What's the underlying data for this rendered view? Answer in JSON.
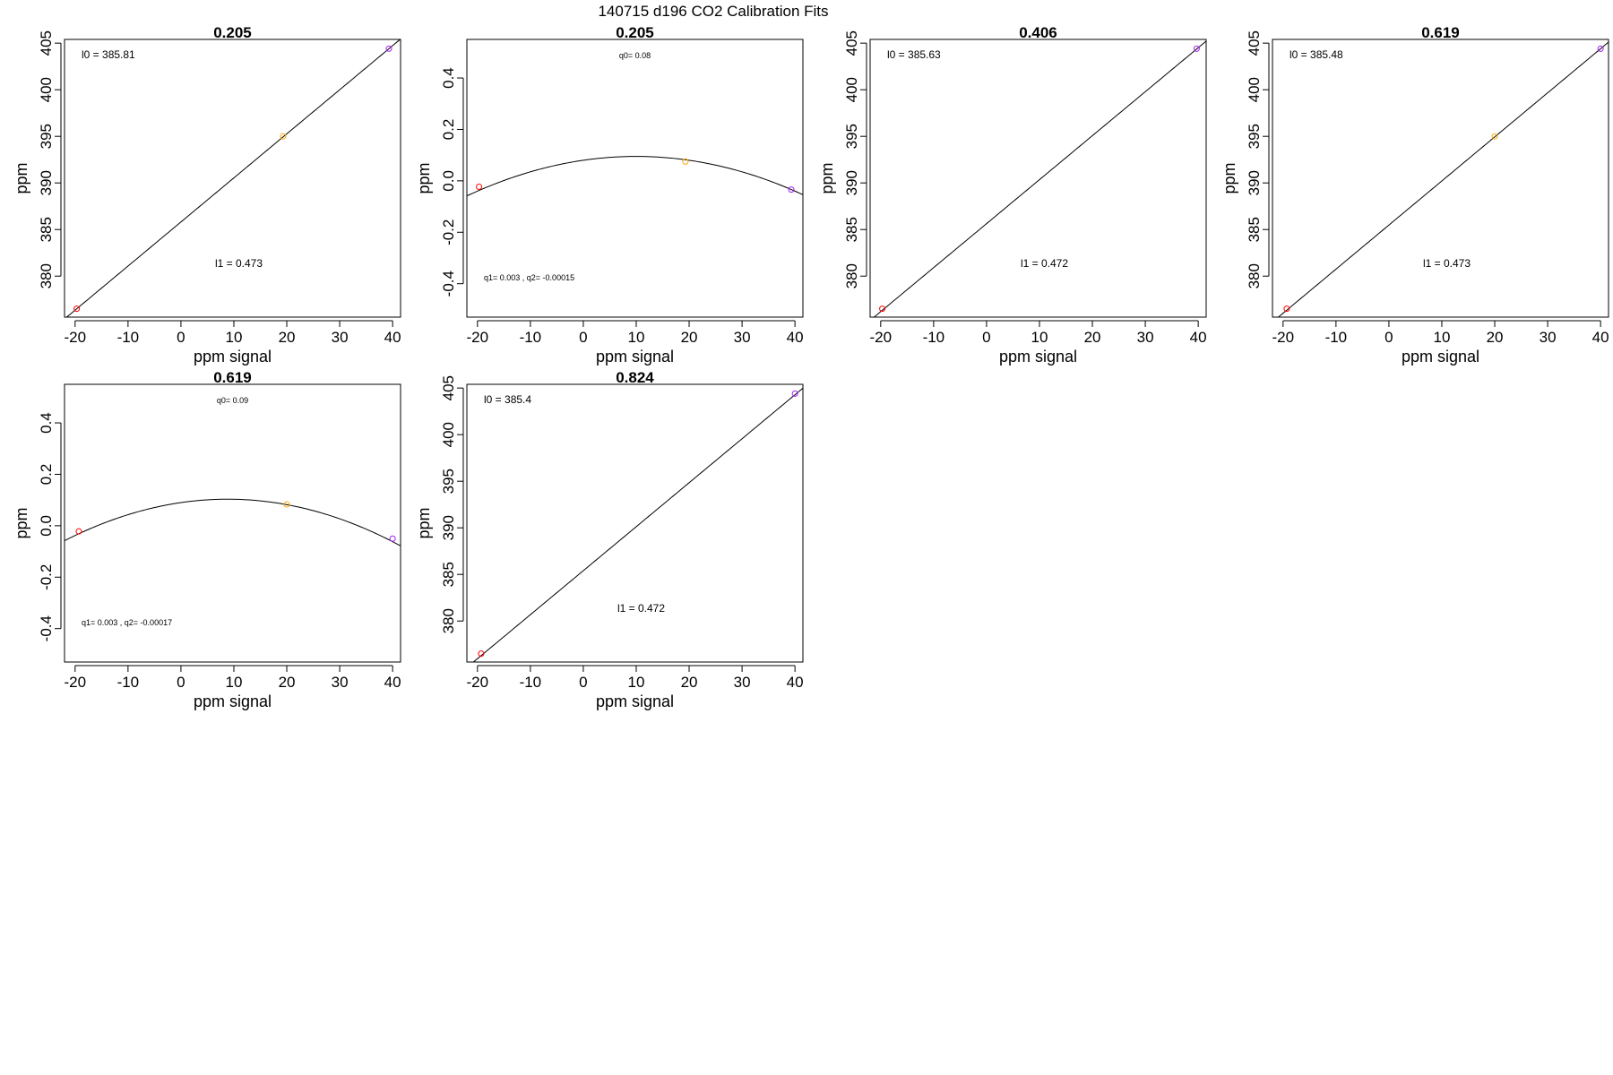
{
  "suptitle": "140715   d196   CO2 Calibration Fits",
  "colors": {
    "line": "#000000",
    "frame": "#000000",
    "point_low": "#ff0000",
    "point_mid": "#ffa500",
    "point_high": "#a020f0"
  },
  "chart_data": [
    {
      "type": "scatter",
      "title": "0.205",
      "xlabel": "ppm signal",
      "ylabel": "ppm",
      "xlim": [
        -22,
        41.5
      ],
      "ylim": [
        375.6,
        405.4
      ],
      "xticks": [
        -20,
        -10,
        0,
        10,
        20,
        30,
        40
      ],
      "xtick_labels": [
        "-20",
        "-10",
        "0",
        "10",
        "20",
        "30",
        "40"
      ],
      "yticks": [
        380,
        385,
        390,
        395,
        400,
        405
      ],
      "ytick_labels": [
        "380",
        "385",
        "390",
        "395",
        "400",
        "405"
      ],
      "fit": {
        "kind": "linear",
        "intercept": 385.81,
        "slope": 0.473
      },
      "points": [
        {
          "x": -19.7,
          "y": 376.5,
          "color": "point_low"
        },
        {
          "x": 19.3,
          "y": 395.0,
          "color": "point_mid"
        },
        {
          "x": 39.3,
          "y": 404.4,
          "color": "point_high"
        }
      ],
      "annotations": [
        {
          "text": "l0 =  385.81",
          "pos": "top-left",
          "size": "normal"
        },
        {
          "text": "l1 =  0.473",
          "pos": "bottom-center",
          "size": "normal"
        }
      ]
    },
    {
      "type": "scatter",
      "title": "0.205",
      "xlabel": "ppm signal",
      "ylabel": "ppm",
      "xlim": [
        -22,
        41.5
      ],
      "ylim": [
        -0.53,
        0.55
      ],
      "xticks": [
        -20,
        -10,
        0,
        10,
        20,
        30,
        40
      ],
      "xtick_labels": [
        "-20",
        "-10",
        "0",
        "10",
        "20",
        "30",
        "40"
      ],
      "yticks": [
        -0.4,
        -0.2,
        0.0,
        0.2,
        0.4
      ],
      "ytick_labels": [
        "-0.4",
        "-0.2",
        "0.0",
        "0.2",
        "0.4"
      ],
      "fit": {
        "kind": "quadratic",
        "q0": 0.08,
        "q1": 0.003,
        "q2": -0.00015
      },
      "points": [
        {
          "x": -19.7,
          "y": -0.023,
          "color": "point_low"
        },
        {
          "x": 19.3,
          "y": 0.075,
          "color": "point_mid"
        },
        {
          "x": 39.3,
          "y": -0.034,
          "color": "point_high"
        }
      ],
      "annotations": [
        {
          "text": "q0= 0.08",
          "pos": "top-center",
          "size": "small"
        },
        {
          "text": "q1= 0.003 , q2= -0.00015",
          "pos": "bottom-left",
          "size": "small"
        }
      ]
    },
    {
      "type": "scatter",
      "title": "0.406",
      "xlabel": "ppm signal",
      "ylabel": "ppm",
      "xlim": [
        -22,
        41.5
      ],
      "ylim": [
        375.6,
        405.4
      ],
      "xticks": [
        -20,
        -10,
        0,
        10,
        20,
        30,
        40
      ],
      "xtick_labels": [
        "-20",
        "-10",
        "0",
        "10",
        "20",
        "30",
        "40"
      ],
      "yticks": [
        380,
        385,
        390,
        395,
        400,
        405
      ],
      "ytick_labels": [
        "380",
        "385",
        "390",
        "395",
        "400",
        "405"
      ],
      "fit": {
        "kind": "linear",
        "intercept": 385.63,
        "slope": 0.472
      },
      "points": [
        {
          "x": -19.7,
          "y": 376.5,
          "color": "point_low"
        },
        {
          "x": 39.7,
          "y": 404.4,
          "color": "point_high"
        }
      ],
      "annotations": [
        {
          "text": "l0 =  385.63",
          "pos": "top-left",
          "size": "normal"
        },
        {
          "text": "l1 =  0.472",
          "pos": "bottom-center",
          "size": "normal"
        }
      ]
    },
    {
      "type": "scatter",
      "title": "0.619",
      "xlabel": "ppm signal",
      "ylabel": "ppm",
      "xlim": [
        -22,
        41.5
      ],
      "ylim": [
        375.6,
        405.4
      ],
      "xticks": [
        -20,
        -10,
        0,
        10,
        20,
        30,
        40
      ],
      "xtick_labels": [
        "-20",
        "-10",
        "0",
        "10",
        "20",
        "30",
        "40"
      ],
      "yticks": [
        380,
        385,
        390,
        395,
        400,
        405
      ],
      "ytick_labels": [
        "380",
        "385",
        "390",
        "395",
        "400",
        "405"
      ],
      "fit": {
        "kind": "linear",
        "intercept": 385.48,
        "slope": 0.473
      },
      "points": [
        {
          "x": -19.3,
          "y": 376.5,
          "color": "point_low"
        },
        {
          "x": 20.0,
          "y": 395.0,
          "color": "point_mid"
        },
        {
          "x": 40.0,
          "y": 404.4,
          "color": "point_high"
        }
      ],
      "annotations": [
        {
          "text": "l0 =  385.48",
          "pos": "top-left",
          "size": "normal"
        },
        {
          "text": "l1 =  0.473",
          "pos": "bottom-center",
          "size": "normal"
        }
      ]
    },
    {
      "type": "scatter",
      "title": "0.619",
      "xlabel": "ppm signal",
      "ylabel": "ppm",
      "xlim": [
        -22,
        41.5
      ],
      "ylim": [
        -0.53,
        0.55
      ],
      "xticks": [
        -20,
        -10,
        0,
        10,
        20,
        30,
        40
      ],
      "xtick_labels": [
        "-20",
        "-10",
        "0",
        "10",
        "20",
        "30",
        "40"
      ],
      "yticks": [
        -0.4,
        -0.2,
        0.0,
        0.2,
        0.4
      ],
      "ytick_labels": [
        "-0.4",
        "-0.2",
        "0.0",
        "0.2",
        "0.4"
      ],
      "fit": {
        "kind": "quadratic",
        "q0": 0.09,
        "q1": 0.003,
        "q2": -0.00017
      },
      "points": [
        {
          "x": -19.3,
          "y": -0.022,
          "color": "point_low"
        },
        {
          "x": 20.0,
          "y": 0.083,
          "color": "point_mid"
        },
        {
          "x": 40.0,
          "y": -0.05,
          "color": "point_high"
        }
      ],
      "annotations": [
        {
          "text": "q0= 0.09",
          "pos": "top-center",
          "size": "small"
        },
        {
          "text": "q1= 0.003 , q2= -0.00017",
          "pos": "bottom-left",
          "size": "small"
        }
      ]
    },
    {
      "type": "scatter",
      "title": "0.824",
      "xlabel": "ppm signal",
      "ylabel": "ppm",
      "xlim": [
        -22,
        41.5
      ],
      "ylim": [
        375.6,
        405.4
      ],
      "xticks": [
        -20,
        -10,
        0,
        10,
        20,
        30,
        40
      ],
      "xtick_labels": [
        "-20",
        "-10",
        "0",
        "10",
        "20",
        "30",
        "40"
      ],
      "yticks": [
        380,
        385,
        390,
        395,
        400,
        405
      ],
      "ytick_labels": [
        "380",
        "385",
        "390",
        "395",
        "400",
        "405"
      ],
      "fit": {
        "kind": "linear",
        "intercept": 385.4,
        "slope": 0.472
      },
      "points": [
        {
          "x": -19.3,
          "y": 376.5,
          "color": "point_low"
        },
        {
          "x": 40.0,
          "y": 404.4,
          "color": "point_high"
        }
      ],
      "annotations": [
        {
          "text": "l0 =  385.4",
          "pos": "top-left",
          "size": "normal"
        },
        {
          "text": "l1 =  0.472",
          "pos": "bottom-center",
          "size": "normal"
        }
      ]
    }
  ]
}
